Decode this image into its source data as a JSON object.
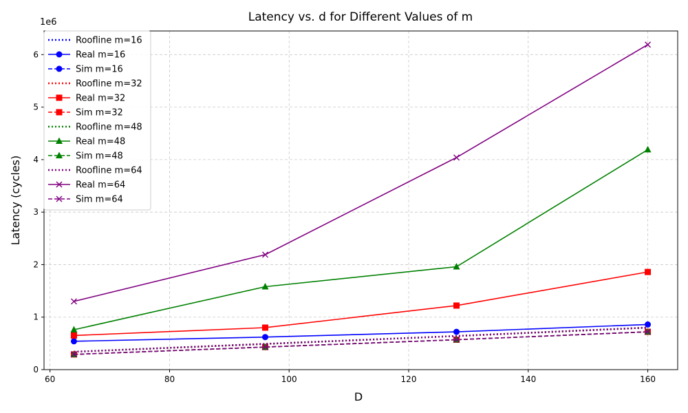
{
  "chart_data": {
    "type": "line",
    "title": "Latency vs. d for Different Values of m",
    "xlabel": "D",
    "ylabel": "Latency (cycles)",
    "y_exponent_label": "1e6",
    "xlim": [
      59,
      165
    ],
    "ylim": [
      0,
      6450000
    ],
    "x_ticks": [
      60,
      80,
      100,
      120,
      140,
      160
    ],
    "y_ticks": [
      0,
      1000000,
      2000000,
      3000000,
      4000000,
      5000000,
      6000000
    ],
    "y_tick_labels": [
      "0",
      "1",
      "2",
      "3",
      "4",
      "5",
      "6"
    ],
    "grid": true,
    "legend_position": "top-left",
    "x": [
      64,
      96,
      128,
      160
    ],
    "series": [
      {
        "name": "Roofline m=16",
        "color": "#0000ff",
        "style": "dotted",
        "marker": "none",
        "values": [
          340000,
          490000,
          640000,
          800000
        ]
      },
      {
        "name": "Real m=16",
        "color": "#0000ff",
        "style": "solid",
        "marker": "circle",
        "values": [
          540000,
          620000,
          720000,
          860000
        ]
      },
      {
        "name": "Sim m=16",
        "color": "#0000ff",
        "style": "dashed",
        "marker": "circle",
        "values": [
          290000,
          430000,
          570000,
          720000
        ]
      },
      {
        "name": "Roofline m=32",
        "color": "#ff0000",
        "style": "dotted",
        "marker": "none",
        "values": [
          340000,
          490000,
          640000,
          800000
        ]
      },
      {
        "name": "Real m=32",
        "color": "#ff0000",
        "style": "solid",
        "marker": "square",
        "values": [
          650000,
          800000,
          1220000,
          1860000
        ]
      },
      {
        "name": "Sim m=32",
        "color": "#ff0000",
        "style": "dashed",
        "marker": "square",
        "values": [
          290000,
          430000,
          570000,
          720000
        ]
      },
      {
        "name": "Roofline m=48",
        "color": "#008000",
        "style": "dotted",
        "marker": "none",
        "values": [
          340000,
          490000,
          640000,
          800000
        ]
      },
      {
        "name": "Real m=48",
        "color": "#008000",
        "style": "solid",
        "marker": "triangle",
        "values": [
          760000,
          1580000,
          1960000,
          4190000
        ]
      },
      {
        "name": "Sim m=48",
        "color": "#008000",
        "style": "dashed",
        "marker": "triangle",
        "values": [
          290000,
          430000,
          570000,
          720000
        ]
      },
      {
        "name": "Roofline m=64",
        "color": "#800080",
        "style": "dotted",
        "marker": "none",
        "values": [
          340000,
          490000,
          640000,
          800000
        ]
      },
      {
        "name": "Real m=64",
        "color": "#800080",
        "style": "solid",
        "marker": "x",
        "values": [
          1300000,
          2190000,
          4040000,
          6190000
        ]
      },
      {
        "name": "Sim m=64",
        "color": "#800080",
        "style": "dashed",
        "marker": "x",
        "values": [
          290000,
          430000,
          570000,
          720000
        ]
      }
    ]
  }
}
